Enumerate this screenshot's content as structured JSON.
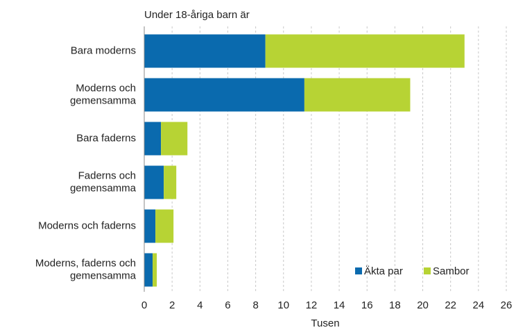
{
  "chart_data": {
    "type": "stacked-barh",
    "title": "Under 18-åriga barn är",
    "xlabel": "Tusen",
    "categories": [
      "Bara moderns",
      "Moderns och\ngemensamma",
      "Bara faderns",
      "Faderns och\ngemensamma",
      "Moderns och faderns",
      "Moderns, faderns och\ngemensamma"
    ],
    "series": [
      {
        "name": "Äkta par",
        "color": "#0a6aae",
        "values": [
          8.7,
          11.5,
          1.2,
          1.4,
          0.8,
          0.6
        ]
      },
      {
        "name": "Sambor",
        "color": "#b7d334",
        "values": [
          14.3,
          7.6,
          1.9,
          0.9,
          1.3,
          0.3
        ]
      }
    ],
    "xlim": [
      0,
      26
    ],
    "xticks": [
      0,
      2,
      4,
      6,
      8,
      10,
      12,
      14,
      16,
      18,
      20,
      22,
      24,
      26
    ],
    "grid": true,
    "legend": "lower right"
  }
}
